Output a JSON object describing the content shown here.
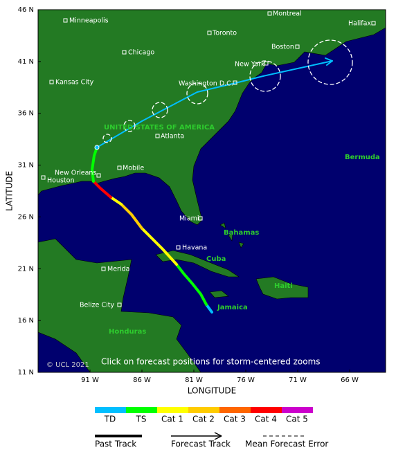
{
  "map": {
    "lat_labels": [
      "46 N",
      "41 N",
      "36 N",
      "31 N",
      "26 N",
      "21 N",
      "16 N",
      "11 N"
    ],
    "lon_labels": [
      "91 W",
      "86 W",
      "81 W",
      "76 W",
      "71 W",
      "66 W"
    ],
    "y_axis_title": "LATITUDE",
    "x_axis_title": "LONGITUDE",
    "copyright": "© UCL 2021",
    "instruction": "Click on forecast positions for storm-centered zooms",
    "cities": [
      "Minneapolis",
      "Toronto",
      "Montreal",
      "Halifax",
      "Boston",
      "Chicago",
      "New York",
      "Kansas City",
      "Washington D.C.",
      "Atlanta",
      "New Orleans",
      "Mobile",
      "Houston",
      "Miami",
      "Havana",
      "Merida",
      "Belize City"
    ],
    "regions": [
      "UNITED STATES OF AMERICA",
      "Bermuda",
      "Bahamas",
      "Cuba",
      "Haiti",
      "Jamaica",
      "Honduras"
    ]
  },
  "legend": {
    "scale": [
      "TD",
      "TS",
      "Cat 1",
      "Cat 2",
      "Cat 3",
      "Cat 4",
      "Cat 5"
    ],
    "past_track": "Past Track",
    "forecast_track": "Forecast Track",
    "mean_error": "Mean Forecast Error"
  }
}
